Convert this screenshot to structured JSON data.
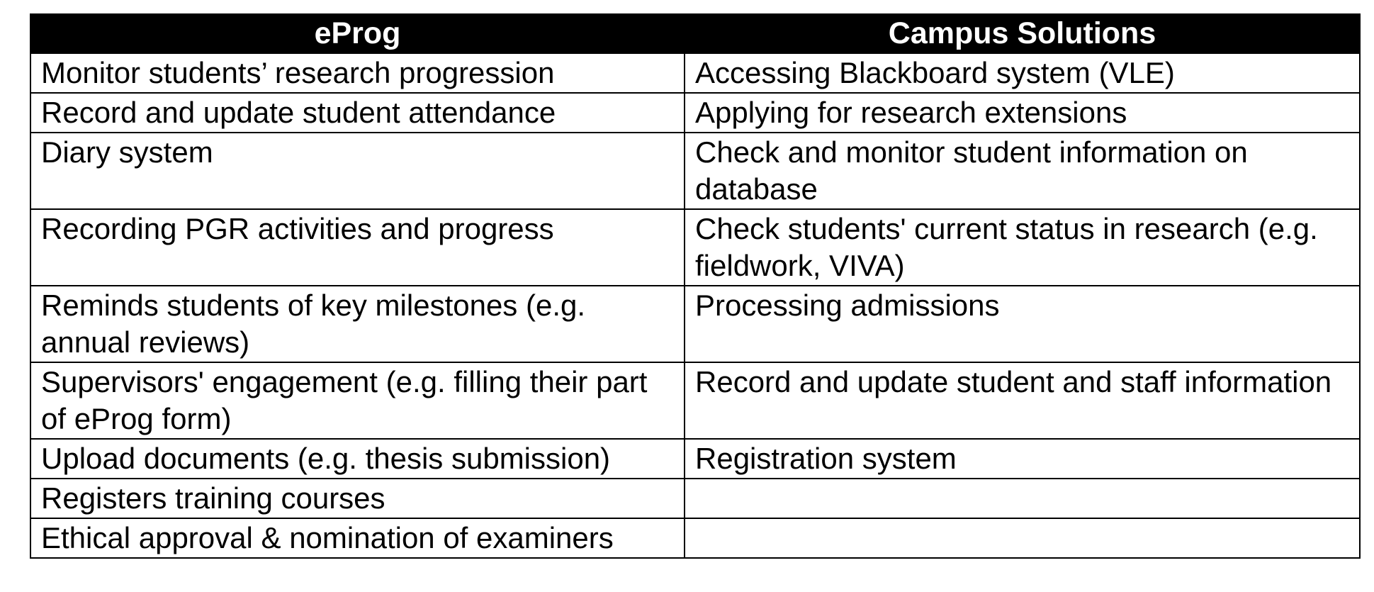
{
  "header": {
    "columns": [
      "eProg",
      "Campus Solutions"
    ]
  },
  "table": {
    "rows": [
      [
        "Monitor students’ research progression",
        "Accessing Blackboard system (VLE)"
      ],
      [
        "Record and update student attendance",
        "Applying for research extensions"
      ],
      [
        "Diary system",
        "Check and monitor student information on database"
      ],
      [
        "Recording PGR activities and progress",
        "Check students' current status in research (e.g. fieldwork, VIVA)"
      ],
      [
        "Reminds students of key milestones (e.g. annual reviews)",
        "Processing admissions"
      ],
      [
        "Supervisors' engagement (e.g. filling their part of eProg form)",
        "Record and update student and staff information"
      ],
      [
        "Upload documents (e.g. thesis submission)",
        "Registration system"
      ],
      [
        "Registers training courses",
        null
      ],
      [
        "Ethical approval & nomination of examiners",
        null
      ]
    ]
  }
}
